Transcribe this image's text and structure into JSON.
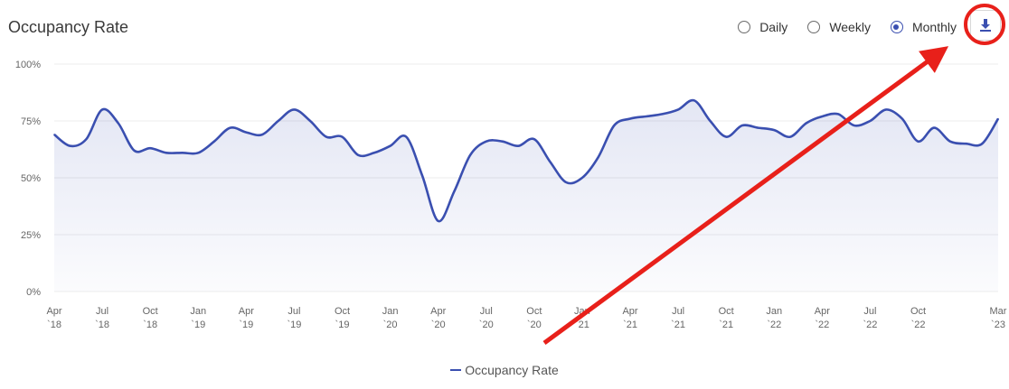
{
  "header": {
    "title": "Occupancy Rate",
    "period_options": [
      {
        "label": "Daily",
        "selected": false
      },
      {
        "label": "Weekly",
        "selected": false
      },
      {
        "label": "Monthly",
        "selected": true
      }
    ],
    "download_icon": "download-icon"
  },
  "colors": {
    "series": "#3a4fb0",
    "annotation": "#e8201a",
    "grid": "#ececec"
  },
  "chart_data": {
    "type": "area",
    "ylim": [
      0,
      100
    ],
    "y_ticks": [
      "0%",
      "25%",
      "50%",
      "75%",
      "100%"
    ],
    "x_ticks": [
      [
        "Apr",
        "`18"
      ],
      [
        "Jul",
        "`18"
      ],
      [
        "Oct",
        "`18"
      ],
      [
        "Jan",
        "`19"
      ],
      [
        "Apr",
        "`19"
      ],
      [
        "Jul",
        "`19"
      ],
      [
        "Oct",
        "`19"
      ],
      [
        "Jan",
        "`20"
      ],
      [
        "Apr",
        "`20"
      ],
      [
        "Jul",
        "`20"
      ],
      [
        "Oct",
        "`20"
      ],
      [
        "Jan",
        "`21"
      ],
      [
        "Apr",
        "`21"
      ],
      [
        "Jul",
        "`21"
      ],
      [
        "Oct",
        "`21"
      ],
      [
        "Jan",
        "`22"
      ],
      [
        "Apr",
        "`22"
      ],
      [
        "Jul",
        "`22"
      ],
      [
        "Oct",
        "`22"
      ],
      [
        "Mar",
        "`23"
      ]
    ],
    "series": [
      {
        "name": "Occupancy Rate",
        "x": [
          "Apr 2018",
          "May 2018",
          "Jun 2018",
          "Jul 2018",
          "Aug 2018",
          "Sep 2018",
          "Oct 2018",
          "Nov 2018",
          "Dec 2018",
          "Jan 2019",
          "Feb 2019",
          "Mar 2019",
          "Apr 2019",
          "May 2019",
          "Jun 2019",
          "Jul 2019",
          "Aug 2019",
          "Sep 2019",
          "Oct 2019",
          "Nov 2019",
          "Dec 2019",
          "Jan 2020",
          "Feb 2020",
          "Mar 2020",
          "Apr 2020",
          "May 2020",
          "Jun 2020",
          "Jul 2020",
          "Aug 2020",
          "Sep 2020",
          "Oct 2020",
          "Nov 2020",
          "Dec 2020",
          "Jan 2021",
          "Feb 2021",
          "Mar 2021",
          "Apr 2021",
          "May 2021",
          "Jun 2021",
          "Jul 2021",
          "Aug 2021",
          "Sep 2021",
          "Oct 2021",
          "Nov 2021",
          "Dec 2021",
          "Jan 2022",
          "Feb 2022",
          "Mar 2022",
          "Apr 2022",
          "May 2022",
          "Jun 2022",
          "Jul 2022",
          "Aug 2022",
          "Sep 2022",
          "Oct 2022",
          "Nov 2022",
          "Dec 2022",
          "Jan 2023",
          "Feb 2023",
          "Mar 2023"
        ],
        "values": [
          69,
          64,
          67,
          80,
          74,
          62,
          63,
          61,
          61,
          61,
          66,
          72,
          70,
          69,
          75,
          80,
          75,
          68,
          68,
          60,
          61,
          64,
          68,
          51,
          31,
          44,
          60,
          66,
          66,
          64,
          67,
          57,
          48,
          50,
          59,
          73,
          76,
          77,
          78,
          80,
          84,
          75,
          68,
          73,
          72,
          71,
          68,
          74,
          77,
          78,
          73,
          75,
          80,
          76,
          66,
          72,
          66,
          65,
          65,
          76
        ]
      }
    ],
    "legend": "Occupancy Rate",
    "legend_position": "bottom",
    "grid": true
  }
}
